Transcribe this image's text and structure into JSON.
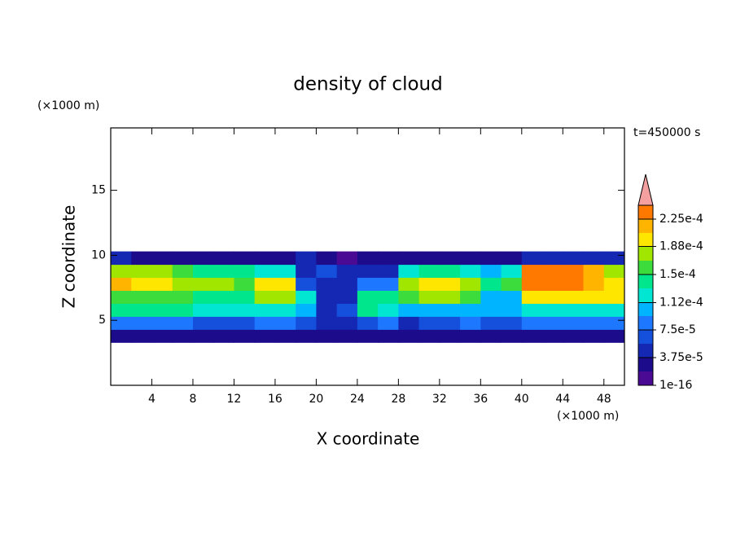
{
  "chart_data": {
    "type": "contour",
    "title": "density of cloud",
    "xlabel": "X coordinate",
    "ylabel": "Z coordinate",
    "x_unit": "(×1000 m)",
    "y_unit": "(×1000 m)",
    "annotation": "t=450000 s",
    "xlim": [
      0,
      50
    ],
    "ylim": [
      0,
      19.8
    ],
    "xticks": [
      4,
      8,
      12,
      16,
      20,
      24,
      28,
      32,
      36,
      40,
      44,
      48
    ],
    "yticks": [
      5,
      10,
      15
    ],
    "x_edges": [
      0,
      2,
      4,
      6,
      8,
      10,
      12,
      14,
      16,
      18,
      20,
      22,
      24,
      26,
      28,
      30,
      32,
      34,
      36,
      38,
      40,
      42,
      44,
      46,
      48,
      50
    ],
    "z_edges": [
      3.3,
      4.3,
      5.3,
      6.3,
      7.3,
      8.3,
      9.3,
      10.3
    ],
    "z": [
      [
        3e-05,
        3e-05,
        3e-05,
        3e-05,
        3e-05,
        3e-05,
        3e-05,
        3e-05,
        3e-05,
        3e-05,
        2e-05,
        2e-05,
        2e-05,
        2e-05,
        2e-05,
        2e-05,
        3e-05,
        3e-05,
        3e-05,
        3e-05,
        3e-05,
        3e-05,
        3e-05,
        3e-05,
        3e-05
      ],
      [
        8e-05,
        8e-05,
        8e-05,
        8e-05,
        7e-05,
        7e-05,
        7e-05,
        8e-05,
        8e-05,
        6e-05,
        4e-05,
        5e-05,
        6e-05,
        8e-05,
        5e-05,
        6e-05,
        7e-05,
        8e-05,
        7e-05,
        6e-05,
        8e-05,
        8e-05,
        8e-05,
        8e-05,
        8e-05
      ],
      [
        0.00014,
        0.00014,
        0.00014,
        0.00014,
        0.00013,
        0.00013,
        0.00012,
        0.00013,
        0.00013,
        0.0001,
        5e-05,
        6e-05,
        0.00014,
        0.00013,
        0.0001,
        0.00011,
        0.00011,
        0.00011,
        0.0001,
        0.0001,
        0.00013,
        0.00013,
        0.00013,
        0.00013,
        0.00013
      ],
      [
        0.00016,
        0.00016,
        0.00016,
        0.00016,
        0.00015,
        0.00015,
        0.00014,
        0.00017,
        0.00017,
        0.00012,
        4e-05,
        5e-05,
        0.00015,
        0.00014,
        0.00016,
        0.00017,
        0.00017,
        0.00016,
        0.00011,
        0.00011,
        0.00019,
        0.00019,
        0.00019,
        0.00019,
        0.00019
      ],
      [
        0.00022,
        0.0002,
        0.00019,
        0.00017,
        0.00017,
        0.00017,
        0.00016,
        0.0002,
        0.0002,
        6e-05,
        5e-05,
        5e-05,
        8e-05,
        8e-05,
        0.00018,
        0.00019,
        0.0002,
        0.00017,
        0.00014,
        0.00016,
        0.00023,
        0.00023,
        0.00023,
        0.00022,
        0.0002
      ],
      [
        0.00017,
        0.00017,
        0.00017,
        0.00016,
        0.00015,
        0.00014,
        0.00014,
        0.00013,
        0.00013,
        5e-05,
        6e-05,
        5e-05,
        4e-05,
        5e-05,
        0.00013,
        0.00014,
        0.00014,
        0.00013,
        0.0001,
        0.00012,
        0.00024,
        0.00024,
        0.00023,
        0.00021,
        0.00018
      ],
      [
        4e-05,
        3e-05,
        3e-05,
        3e-05,
        3e-05,
        3e-05,
        3e-05,
        3e-05,
        3e-05,
        4e-05,
        3e-05,
        1e-05,
        2e-05,
        3e-05,
        3e-05,
        3e-05,
        3e-05,
        3e-05,
        3e-05,
        3e-05,
        4e-05,
        4e-05,
        4e-05,
        4e-05,
        4e-05
      ]
    ],
    "clim": [
      1e-16,
      0.00024375
    ],
    "colors": [
      "#4a0a94",
      "#1c0c8c",
      "#1428b4",
      "#1450dc",
      "#1e78ff",
      "#00b4ff",
      "#00e6d2",
      "#00e68c",
      "#3cdc3c",
      "#a0e600",
      "#ffe600",
      "#ffb400",
      "#ff7800"
    ],
    "over_color": "#f5a0a0",
    "cticks": [
      {
        "value": 1e-16,
        "label": "1e-16"
      },
      {
        "value": 3.75e-05,
        "label": "3.75e-5"
      },
      {
        "value": 7.5e-05,
        "label": "7.5e-5"
      },
      {
        "value": 0.000112,
        "label": "1.12e-4"
      },
      {
        "value": 0.00015,
        "label": "1.5e-4"
      },
      {
        "value": 0.000188,
        "label": "1.88e-4"
      },
      {
        "value": 0.000225,
        "label": "2.25e-4"
      }
    ]
  }
}
